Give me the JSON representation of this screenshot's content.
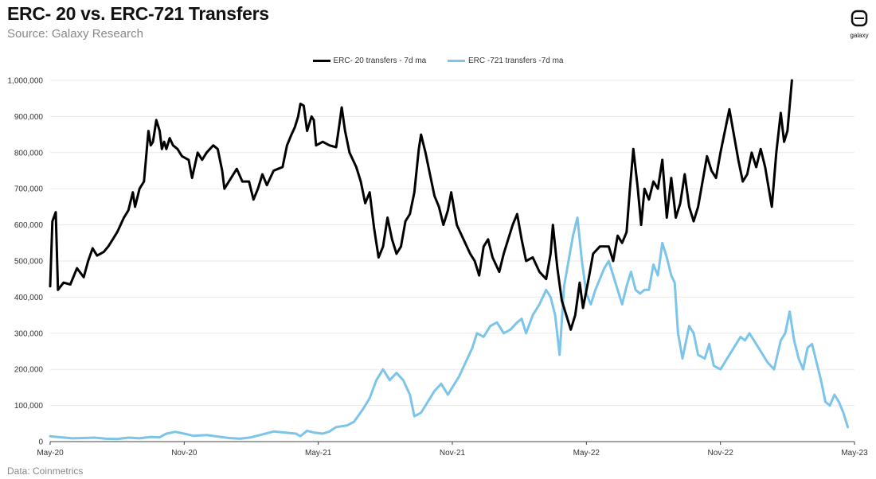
{
  "page": {
    "title": "ERC- 20 vs. ERC-721 Transfers",
    "subtitle": "Source: Galaxy Research",
    "source_note": "Data: Coinmetrics",
    "logo_text": "galaxy"
  },
  "colors": {
    "erc20": "#000000",
    "erc721": "#7cc4ea",
    "grid": "#e9e9e9"
  },
  "chart_data": {
    "type": "line",
    "title": "ERC- 20 vs. ERC-721 Transfers",
    "subtitle": "Source: Galaxy Research",
    "xlabel": "",
    "ylabel": "",
    "ylim": [
      0,
      1000000
    ],
    "y_ticks": [
      0,
      100000,
      200000,
      300000,
      400000,
      500000,
      600000,
      700000,
      800000,
      900000,
      1000000
    ],
    "y_tick_labels": [
      "0",
      "100,000",
      "200,000",
      "300,000",
      "400,000",
      "500,000",
      "600,000",
      "700,000",
      "800,000",
      "900,000",
      "1,000,000"
    ],
    "x_ticks": [
      0,
      6,
      12,
      18,
      24,
      30,
      36
    ],
    "x_tick_labels": [
      "May-20",
      "Nov-20",
      "May-21",
      "Nov-21",
      "May-22",
      "Nov-22",
      "May-23"
    ],
    "x_unit": "months since May-20",
    "grid": true,
    "legend_position": "top-center",
    "series": [
      {
        "name": "ERC- 20 transfers - 7d ma",
        "points": [
          [
            0,
            430000
          ],
          [
            0.1,
            610000
          ],
          [
            0.25,
            635000
          ],
          [
            0.35,
            420000
          ],
          [
            0.6,
            440000
          ],
          [
            0.9,
            435000
          ],
          [
            1.2,
            480000
          ],
          [
            1.5,
            455000
          ],
          [
            1.7,
            500000
          ],
          [
            1.9,
            535000
          ],
          [
            2.1,
            515000
          ],
          [
            2.4,
            525000
          ],
          [
            2.6,
            540000
          ],
          [
            2.8,
            560000
          ],
          [
            3.0,
            580000
          ],
          [
            3.3,
            620000
          ],
          [
            3.5,
            640000
          ],
          [
            3.7,
            690000
          ],
          [
            3.8,
            650000
          ],
          [
            4.0,
            700000
          ],
          [
            4.2,
            720000
          ],
          [
            4.3,
            790000
          ],
          [
            4.4,
            860000
          ],
          [
            4.5,
            820000
          ],
          [
            4.6,
            830000
          ],
          [
            4.75,
            890000
          ],
          [
            4.9,
            860000
          ],
          [
            5.0,
            810000
          ],
          [
            5.1,
            830000
          ],
          [
            5.2,
            810000
          ],
          [
            5.35,
            840000
          ],
          [
            5.5,
            820000
          ],
          [
            5.7,
            810000
          ],
          [
            5.9,
            790000
          ],
          [
            6.2,
            780000
          ],
          [
            6.35,
            730000
          ],
          [
            6.6,
            800000
          ],
          [
            6.8,
            780000
          ],
          [
            7.0,
            800000
          ],
          [
            7.3,
            820000
          ],
          [
            7.5,
            810000
          ],
          [
            7.7,
            750000
          ],
          [
            7.8,
            700000
          ],
          [
            8.0,
            720000
          ],
          [
            8.2,
            740000
          ],
          [
            8.35,
            755000
          ],
          [
            8.6,
            720000
          ],
          [
            8.9,
            720000
          ],
          [
            9.1,
            670000
          ],
          [
            9.3,
            700000
          ],
          [
            9.5,
            740000
          ],
          [
            9.7,
            710000
          ],
          [
            10.0,
            750000
          ],
          [
            10.2,
            755000
          ],
          [
            10.4,
            760000
          ],
          [
            10.6,
            820000
          ],
          [
            10.8,
            850000
          ],
          [
            10.95,
            870000
          ],
          [
            11.1,
            900000
          ],
          [
            11.2,
            935000
          ],
          [
            11.35,
            930000
          ],
          [
            11.5,
            860000
          ],
          [
            11.7,
            900000
          ],
          [
            11.8,
            890000
          ],
          [
            11.9,
            820000
          ],
          [
            12.2,
            830000
          ],
          [
            12.5,
            820000
          ],
          [
            12.8,
            815000
          ],
          [
            12.95,
            880000
          ],
          [
            13.05,
            925000
          ],
          [
            13.2,
            860000
          ],
          [
            13.4,
            800000
          ],
          [
            13.7,
            760000
          ],
          [
            13.9,
            720000
          ],
          [
            14.1,
            660000
          ],
          [
            14.3,
            690000
          ],
          [
            14.5,
            590000
          ],
          [
            14.7,
            510000
          ],
          [
            14.9,
            540000
          ],
          [
            15.1,
            620000
          ],
          [
            15.3,
            560000
          ],
          [
            15.5,
            520000
          ],
          [
            15.7,
            540000
          ],
          [
            15.9,
            610000
          ],
          [
            16.1,
            630000
          ],
          [
            16.3,
            690000
          ],
          [
            16.5,
            810000
          ],
          [
            16.6,
            850000
          ],
          [
            16.8,
            800000
          ],
          [
            17.0,
            740000
          ],
          [
            17.2,
            680000
          ],
          [
            17.4,
            650000
          ],
          [
            17.6,
            600000
          ],
          [
            17.8,
            640000
          ],
          [
            17.95,
            690000
          ],
          [
            18.2,
            600000
          ],
          [
            18.5,
            560000
          ],
          [
            18.8,
            520000
          ],
          [
            19.0,
            500000
          ],
          [
            19.2,
            460000
          ],
          [
            19.4,
            540000
          ],
          [
            19.6,
            560000
          ],
          [
            19.8,
            510000
          ],
          [
            20.1,
            470000
          ],
          [
            20.3,
            520000
          ],
          [
            20.5,
            560000
          ],
          [
            20.7,
            600000
          ],
          [
            20.9,
            630000
          ],
          [
            21.1,
            560000
          ],
          [
            21.3,
            500000
          ],
          [
            21.6,
            510000
          ],
          [
            21.9,
            470000
          ],
          [
            22.2,
            450000
          ],
          [
            22.4,
            520000
          ],
          [
            22.5,
            600000
          ],
          [
            22.7,
            480000
          ],
          [
            22.9,
            390000
          ],
          [
            23.1,
            350000
          ],
          [
            23.3,
            310000
          ],
          [
            23.5,
            350000
          ],
          [
            23.7,
            440000
          ],
          [
            23.85,
            370000
          ],
          [
            24.1,
            450000
          ],
          [
            24.3,
            520000
          ],
          [
            24.6,
            540000
          ],
          [
            24.8,
            540000
          ],
          [
            25.0,
            540000
          ],
          [
            25.2,
            500000
          ],
          [
            25.4,
            570000
          ],
          [
            25.6,
            550000
          ],
          [
            25.8,
            580000
          ],
          [
            25.95,
            700000
          ],
          [
            26.1,
            810000
          ],
          [
            26.3,
            700000
          ],
          [
            26.45,
            600000
          ],
          [
            26.6,
            700000
          ],
          [
            26.8,
            670000
          ],
          [
            27.0,
            720000
          ],
          [
            27.2,
            700000
          ],
          [
            27.4,
            780000
          ],
          [
            27.6,
            620000
          ],
          [
            27.8,
            730000
          ],
          [
            28.0,
            620000
          ],
          [
            28.2,
            660000
          ],
          [
            28.4,
            740000
          ],
          [
            28.6,
            650000
          ],
          [
            28.8,
            610000
          ],
          [
            29.0,
            650000
          ],
          [
            29.2,
            720000
          ],
          [
            29.4,
            790000
          ],
          [
            29.6,
            750000
          ],
          [
            29.8,
            730000
          ],
          [
            30.0,
            800000
          ],
          [
            30.2,
            860000
          ],
          [
            30.4,
            920000
          ],
          [
            30.6,
            850000
          ],
          [
            30.8,
            780000
          ],
          [
            31.0,
            720000
          ],
          [
            31.2,
            740000
          ],
          [
            31.4,
            800000
          ],
          [
            31.6,
            760000
          ],
          [
            31.8,
            810000
          ],
          [
            32.0,
            760000
          ],
          [
            32.3,
            650000
          ],
          [
            32.5,
            800000
          ],
          [
            32.7,
            910000
          ],
          [
            32.85,
            830000
          ],
          [
            33.0,
            860000
          ],
          [
            33.2,
            1000000
          ]
        ]
      },
      {
        "name": "ERC -721 transfers -7d ma",
        "points": [
          [
            0,
            15000
          ],
          [
            0.5,
            12000
          ],
          [
            1.0,
            9000
          ],
          [
            1.5,
            10000
          ],
          [
            2.0,
            11000
          ],
          [
            2.5,
            8000
          ],
          [
            3.0,
            7000
          ],
          [
            3.5,
            11000
          ],
          [
            4.0,
            9000
          ],
          [
            4.5,
            13000
          ],
          [
            4.9,
            12000
          ],
          [
            5.2,
            22000
          ],
          [
            5.6,
            27000
          ],
          [
            6.0,
            22000
          ],
          [
            6.4,
            16000
          ],
          [
            7.0,
            18000
          ],
          [
            7.5,
            14000
          ],
          [
            8.0,
            10000
          ],
          [
            8.5,
            8000
          ],
          [
            9.0,
            12000
          ],
          [
            9.5,
            20000
          ],
          [
            10.0,
            28000
          ],
          [
            10.5,
            25000
          ],
          [
            11.0,
            22000
          ],
          [
            11.2,
            15000
          ],
          [
            11.5,
            30000
          ],
          [
            11.8,
            25000
          ],
          [
            12.2,
            22000
          ],
          [
            12.5,
            28000
          ],
          [
            12.8,
            40000
          ],
          [
            13.3,
            45000
          ],
          [
            13.6,
            55000
          ],
          [
            14.0,
            90000
          ],
          [
            14.3,
            120000
          ],
          [
            14.6,
            170000
          ],
          [
            14.9,
            200000
          ],
          [
            15.2,
            170000
          ],
          [
            15.5,
            190000
          ],
          [
            15.8,
            170000
          ],
          [
            16.1,
            130000
          ],
          [
            16.3,
            70000
          ],
          [
            16.6,
            80000
          ],
          [
            16.9,
            110000
          ],
          [
            17.2,
            140000
          ],
          [
            17.5,
            160000
          ],
          [
            17.8,
            130000
          ],
          [
            18.0,
            150000
          ],
          [
            18.3,
            180000
          ],
          [
            18.6,
            220000
          ],
          [
            18.9,
            260000
          ],
          [
            19.1,
            300000
          ],
          [
            19.4,
            290000
          ],
          [
            19.7,
            320000
          ],
          [
            20.0,
            330000
          ],
          [
            20.3,
            300000
          ],
          [
            20.6,
            310000
          ],
          [
            20.9,
            330000
          ],
          [
            21.1,
            340000
          ],
          [
            21.3,
            300000
          ],
          [
            21.6,
            350000
          ],
          [
            21.9,
            380000
          ],
          [
            22.2,
            420000
          ],
          [
            22.4,
            400000
          ],
          [
            22.6,
            350000
          ],
          [
            22.8,
            240000
          ],
          [
            23.0,
            430000
          ],
          [
            23.2,
            500000
          ],
          [
            23.4,
            570000
          ],
          [
            23.6,
            620000
          ],
          [
            23.8,
            500000
          ],
          [
            24.0,
            410000
          ],
          [
            24.2,
            380000
          ],
          [
            24.4,
            420000
          ],
          [
            24.6,
            450000
          ],
          [
            24.8,
            480000
          ],
          [
            25.0,
            500000
          ],
          [
            25.2,
            460000
          ],
          [
            25.4,
            420000
          ],
          [
            25.6,
            380000
          ],
          [
            25.8,
            430000
          ],
          [
            26.0,
            470000
          ],
          [
            26.2,
            420000
          ],
          [
            26.4,
            410000
          ],
          [
            26.6,
            420000
          ],
          [
            26.8,
            420000
          ],
          [
            27.0,
            490000
          ],
          [
            27.2,
            460000
          ],
          [
            27.4,
            550000
          ],
          [
            27.6,
            510000
          ],
          [
            27.8,
            460000
          ],
          [
            27.95,
            440000
          ],
          [
            28.1,
            300000
          ],
          [
            28.3,
            230000
          ],
          [
            28.6,
            320000
          ],
          [
            28.8,
            300000
          ],
          [
            29.0,
            240000
          ],
          [
            29.3,
            230000
          ],
          [
            29.5,
            270000
          ],
          [
            29.7,
            210000
          ],
          [
            30.0,
            200000
          ],
          [
            30.3,
            230000
          ],
          [
            30.6,
            260000
          ],
          [
            30.9,
            290000
          ],
          [
            31.1,
            280000
          ],
          [
            31.3,
            300000
          ],
          [
            31.6,
            270000
          ],
          [
            31.9,
            240000
          ],
          [
            32.1,
            220000
          ],
          [
            32.4,
            200000
          ],
          [
            32.7,
            280000
          ],
          [
            32.9,
            300000
          ],
          [
            33.1,
            360000
          ],
          [
            33.3,
            280000
          ],
          [
            33.5,
            230000
          ],
          [
            33.7,
            200000
          ],
          [
            33.9,
            260000
          ],
          [
            34.1,
            270000
          ],
          [
            34.3,
            220000
          ],
          [
            34.5,
            170000
          ],
          [
            34.7,
            110000
          ],
          [
            34.9,
            100000
          ],
          [
            35.1,
            130000
          ],
          [
            35.3,
            110000
          ],
          [
            35.5,
            80000
          ],
          [
            35.7,
            40000
          ]
        ]
      }
    ]
  }
}
